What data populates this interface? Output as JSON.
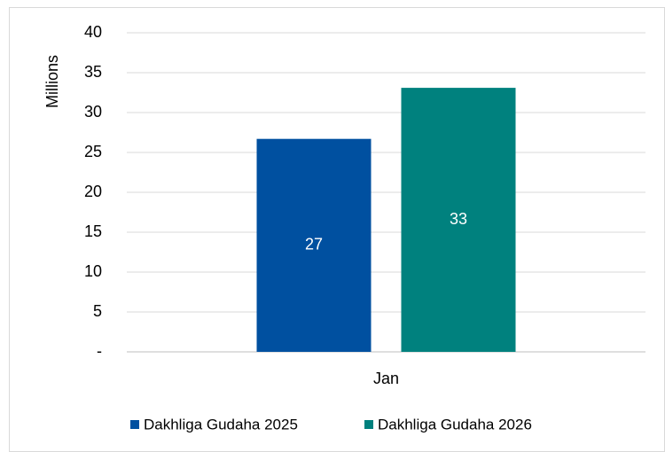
{
  "chart_data": {
    "type": "bar",
    "y_label": "Millions",
    "categories": [
      "Jan"
    ],
    "series": [
      {
        "name": "Dakhliga Gudaha 2025",
        "color": "#0050a0",
        "values": [
          26.7
        ],
        "value_labels": [
          "27"
        ]
      },
      {
        "name": "Dakhliga Gudaha 2026",
        "color": "#00817e",
        "values": [
          33.1
        ],
        "value_labels": [
          "33"
        ]
      }
    ],
    "ylim": [
      0,
      40
    ],
    "yticks": [
      {
        "value": 0,
        "label": "-"
      },
      5,
      10,
      15,
      20,
      25,
      30,
      35,
      40
    ],
    "grid": true,
    "legend": "bottom"
  }
}
